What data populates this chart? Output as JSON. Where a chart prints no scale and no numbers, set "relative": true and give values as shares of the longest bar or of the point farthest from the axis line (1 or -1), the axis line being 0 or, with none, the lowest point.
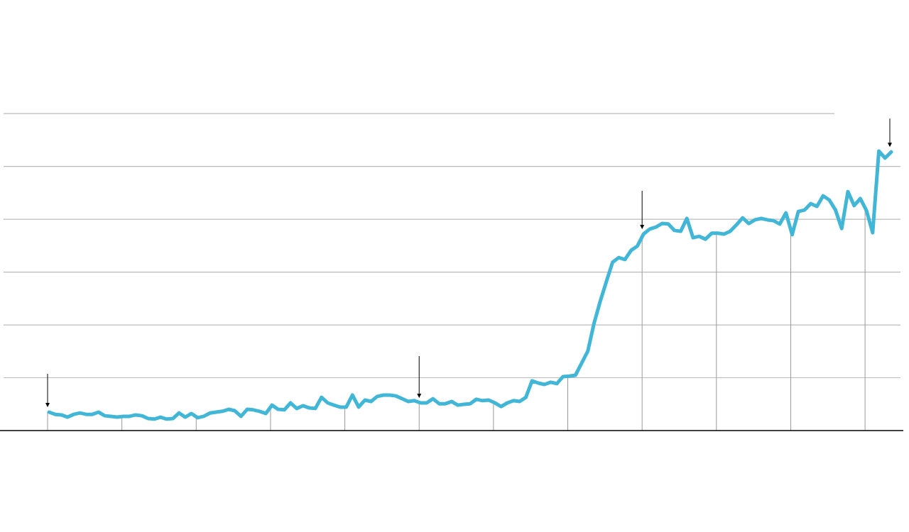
{
  "chart_data": {
    "type": "line",
    "relative": true,
    "grid": true,
    "categories": [
      null,
      null,
      null,
      null,
      null,
      null,
      null,
      null,
      null,
      null,
      null,
      null,
      null,
      null,
      null,
      null,
      null,
      null,
      null,
      null,
      null,
      null,
      null,
      null,
      null,
      null,
      null,
      null,
      null,
      null,
      null,
      null,
      null,
      null,
      null,
      null,
      null,
      null,
      null,
      null,
      null,
      null,
      null,
      null,
      null,
      null,
      null,
      null,
      null,
      null,
      null,
      null,
      null,
      null,
      null,
      null,
      null,
      null,
      null,
      null,
      null,
      null,
      null,
      null,
      null,
      null,
      null,
      null,
      null,
      null,
      null,
      null,
      null,
      null,
      null,
      null,
      null,
      null,
      null,
      null,
      null,
      null,
      null,
      null,
      null,
      null,
      null,
      null,
      null,
      null,
      null,
      null,
      null,
      null,
      null,
      null,
      null,
      null,
      null,
      null,
      null,
      null,
      null,
      null,
      null,
      null,
      null,
      null,
      null,
      null,
      null,
      null,
      null,
      null,
      null,
      null,
      null,
      null,
      null,
      null,
      null,
      null,
      null,
      null,
      null,
      null,
      null,
      null,
      null,
      null,
      null,
      null,
      null,
      null,
      null,
      null,
      null
    ],
    "series": [
      {
        "color": "#41b6d6",
        "values": [
          0.066,
          0.058,
          0.056,
          0.048,
          0.058,
          0.063,
          0.058,
          0.058,
          0.066,
          0.053,
          0.051,
          0.048,
          0.051,
          0.051,
          0.056,
          0.053,
          0.043,
          0.041,
          0.048,
          0.041,
          0.043,
          0.063,
          0.048,
          0.061,
          0.046,
          0.051,
          0.063,
          0.066,
          0.069,
          0.076,
          0.071,
          0.051,
          0.076,
          0.074,
          0.069,
          0.061,
          0.091,
          0.076,
          0.074,
          0.099,
          0.079,
          0.089,
          0.081,
          0.079,
          0.119,
          0.099,
          0.091,
          0.084,
          0.084,
          0.127,
          0.084,
          0.109,
          0.104,
          0.122,
          0.127,
          0.127,
          0.124,
          0.114,
          0.104,
          0.107,
          0.099,
          0.099,
          0.114,
          0.096,
          0.096,
          0.104,
          0.091,
          0.094,
          0.096,
          0.112,
          0.107,
          0.109,
          0.099,
          0.086,
          0.099,
          0.107,
          0.104,
          0.119,
          0.178,
          0.17,
          0.165,
          0.173,
          0.168,
          0.193,
          0.195,
          0.198,
          0.241,
          0.284,
          0.383,
          0.462,
          0.533,
          0.602,
          0.619,
          0.612,
          0.645,
          0.66,
          0.703,
          0.721,
          0.728,
          0.741,
          0.739,
          0.716,
          0.713,
          0.759,
          0.69,
          0.695,
          0.685,
          0.706,
          0.706,
          0.703,
          0.713,
          0.736,
          0.761,
          0.741,
          0.754,
          0.759,
          0.754,
          0.751,
          0.739,
          0.779,
          0.701,
          0.784,
          0.789,
          0.812,
          0.802,
          0.84,
          0.825,
          0.789,
          0.723,
          0.855,
          0.805,
          0.83,
          0.787,
          0.708,
          1,
          0.975,
          0.997
        ]
      }
    ]
  }
}
